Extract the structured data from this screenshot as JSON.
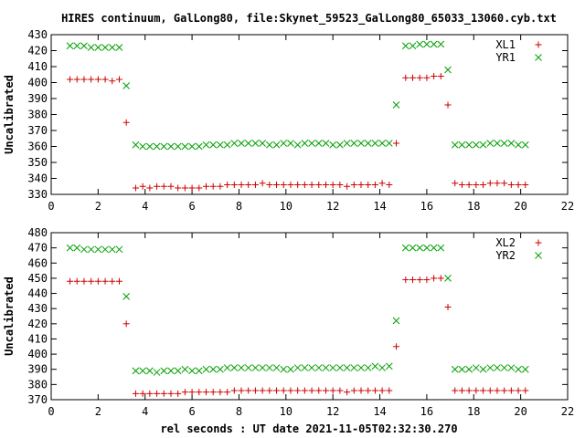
{
  "title": "HIRES continuum, GalLong80, file:Skynet_59523_GalLong80_65033_13060.cyb.txt",
  "xlabel": "rel seconds : UT date 2021-11-05T02:32:30.270",
  "colors": {
    "series_x": "#cc0000",
    "series_y": "#00a000",
    "axes": "#000000",
    "text": "#000000"
  },
  "chart_data": [
    {
      "type": "scatter",
      "ylabel": "Uncalibrated",
      "xlim": [
        0,
        22
      ],
      "ylim": [
        330,
        430
      ],
      "xticks": [
        0,
        2,
        4,
        6,
        8,
        10,
        12,
        14,
        16,
        18,
        20,
        22
      ],
      "yticks": [
        330,
        340,
        350,
        360,
        370,
        380,
        390,
        400,
        410,
        420,
        430
      ],
      "legend": "top-right",
      "grid": false,
      "series": [
        {
          "name": "XL1",
          "marker": "plus",
          "x": [
            0.8,
            1.1,
            1.4,
            1.7,
            2.0,
            2.3,
            2.6,
            2.9,
            3.2,
            3.6,
            3.9,
            4.2,
            4.5,
            4.8,
            5.1,
            5.4,
            5.7,
            6.0,
            6.3,
            6.6,
            6.9,
            7.2,
            7.5,
            7.8,
            8.1,
            8.4,
            8.7,
            9.0,
            9.3,
            9.6,
            9.9,
            10.2,
            10.5,
            10.8,
            11.1,
            11.4,
            11.7,
            12.0,
            12.3,
            12.6,
            12.9,
            13.2,
            13.5,
            13.8,
            14.1,
            14.4,
            14.7,
            15.1,
            15.4,
            15.7,
            16.0,
            16.3,
            16.6,
            16.9,
            17.2,
            17.5,
            17.8,
            18.1,
            18.4,
            18.7,
            19.0,
            19.3,
            19.6,
            19.9,
            20.2
          ],
          "y": [
            402,
            402,
            402,
            402,
            402,
            402,
            401,
            402,
            375,
            334,
            335,
            334,
            335,
            335,
            335,
            334,
            334,
            334,
            334,
            335,
            335,
            335,
            336,
            336,
            336,
            336,
            336,
            337,
            336,
            336,
            336,
            336,
            336,
            336,
            336,
            336,
            336,
            336,
            336,
            335,
            336,
            336,
            336,
            336,
            337,
            336,
            362,
            403,
            403,
            403,
            403,
            404,
            404,
            386,
            337,
            336,
            336,
            336,
            336,
            337,
            337,
            337,
            336,
            336,
            336
          ]
        },
        {
          "name": "YR1",
          "marker": "cross",
          "x": [
            0.8,
            1.1,
            1.4,
            1.7,
            2.0,
            2.3,
            2.6,
            2.9,
            3.2,
            3.6,
            3.9,
            4.2,
            4.5,
            4.8,
            5.1,
            5.4,
            5.7,
            6.0,
            6.3,
            6.6,
            6.9,
            7.2,
            7.5,
            7.8,
            8.1,
            8.4,
            8.7,
            9.0,
            9.3,
            9.6,
            9.9,
            10.2,
            10.5,
            10.8,
            11.1,
            11.4,
            11.7,
            12.0,
            12.3,
            12.6,
            12.9,
            13.2,
            13.5,
            13.8,
            14.1,
            14.4,
            14.7,
            15.1,
            15.4,
            15.7,
            16.0,
            16.3,
            16.6,
            16.9,
            17.2,
            17.5,
            17.8,
            18.1,
            18.4,
            18.7,
            19.0,
            19.3,
            19.6,
            19.9,
            20.2
          ],
          "y": [
            423,
            423,
            423,
            422,
            422,
            422,
            422,
            422,
            398,
            361,
            360,
            360,
            360,
            360,
            360,
            360,
            360,
            360,
            360,
            361,
            361,
            361,
            361,
            362,
            362,
            362,
            362,
            362,
            361,
            361,
            362,
            362,
            361,
            362,
            362,
            362,
            362,
            361,
            361,
            362,
            362,
            362,
            362,
            362,
            362,
            362,
            386,
            423,
            423,
            424,
            424,
            424,
            424,
            408,
            361,
            361,
            361,
            361,
            361,
            362,
            362,
            362,
            362,
            361,
            361
          ]
        }
      ]
    },
    {
      "type": "scatter",
      "ylabel": "Uncalibrated",
      "xlabel": "rel seconds : UT date 2021-11-05T02:32:30.270",
      "xlim": [
        0,
        22
      ],
      "ylim": [
        370,
        480
      ],
      "xticks": [
        0,
        2,
        4,
        6,
        8,
        10,
        12,
        14,
        16,
        18,
        20,
        22
      ],
      "yticks": [
        370,
        380,
        390,
        400,
        410,
        420,
        430,
        440,
        450,
        460,
        470,
        480
      ],
      "legend": "top-right",
      "grid": false,
      "series": [
        {
          "name": "XL2",
          "marker": "plus",
          "x": [
            0.8,
            1.1,
            1.4,
            1.7,
            2.0,
            2.3,
            2.6,
            2.9,
            3.2,
            3.6,
            3.9,
            4.2,
            4.5,
            4.8,
            5.1,
            5.4,
            5.7,
            6.0,
            6.3,
            6.6,
            6.9,
            7.2,
            7.5,
            7.8,
            8.1,
            8.4,
            8.7,
            9.0,
            9.3,
            9.6,
            9.9,
            10.2,
            10.5,
            10.8,
            11.1,
            11.4,
            11.7,
            12.0,
            12.3,
            12.6,
            12.9,
            13.2,
            13.5,
            13.8,
            14.1,
            14.4,
            14.7,
            15.1,
            15.4,
            15.7,
            16.0,
            16.3,
            16.6,
            16.9,
            17.2,
            17.5,
            17.8,
            18.1,
            18.4,
            18.7,
            19.0,
            19.3,
            19.6,
            19.9,
            20.2
          ],
          "y": [
            448,
            448,
            448,
            448,
            448,
            448,
            448,
            448,
            420,
            374,
            374,
            374,
            374,
            374,
            374,
            374,
            375,
            375,
            375,
            375,
            375,
            375,
            375,
            376,
            376,
            376,
            376,
            376,
            376,
            376,
            376,
            376,
            376,
            376,
            376,
            376,
            376,
            376,
            376,
            375,
            376,
            376,
            376,
            376,
            376,
            376,
            405,
            449,
            449,
            449,
            449,
            450,
            450,
            431,
            376,
            376,
            376,
            376,
            376,
            376,
            376,
            376,
            376,
            376,
            376
          ]
        },
        {
          "name": "YR2",
          "marker": "cross",
          "x": [
            0.8,
            1.1,
            1.4,
            1.7,
            2.0,
            2.3,
            2.6,
            2.9,
            3.2,
            3.6,
            3.9,
            4.2,
            4.5,
            4.8,
            5.1,
            5.4,
            5.7,
            6.0,
            6.3,
            6.6,
            6.9,
            7.2,
            7.5,
            7.8,
            8.1,
            8.4,
            8.7,
            9.0,
            9.3,
            9.6,
            9.9,
            10.2,
            10.5,
            10.8,
            11.1,
            11.4,
            11.7,
            12.0,
            12.3,
            12.6,
            12.9,
            13.2,
            13.5,
            13.8,
            14.1,
            14.4,
            14.7,
            15.1,
            15.4,
            15.7,
            16.0,
            16.3,
            16.6,
            16.9,
            17.2,
            17.5,
            17.8,
            18.1,
            18.4,
            18.7,
            19.0,
            19.3,
            19.6,
            19.9,
            20.2
          ],
          "y": [
            470,
            470,
            469,
            469,
            469,
            469,
            469,
            469,
            438,
            389,
            389,
            389,
            388,
            389,
            389,
            389,
            390,
            389,
            389,
            390,
            390,
            390,
            391,
            391,
            391,
            391,
            391,
            391,
            391,
            391,
            390,
            390,
            391,
            391,
            391,
            391,
            391,
            391,
            391,
            391,
            391,
            391,
            391,
            392,
            391,
            392,
            422,
            470,
            470,
            470,
            470,
            470,
            470,
            450,
            390,
            390,
            390,
            391,
            390,
            391,
            391,
            391,
            391,
            390,
            390
          ]
        }
      ]
    }
  ]
}
